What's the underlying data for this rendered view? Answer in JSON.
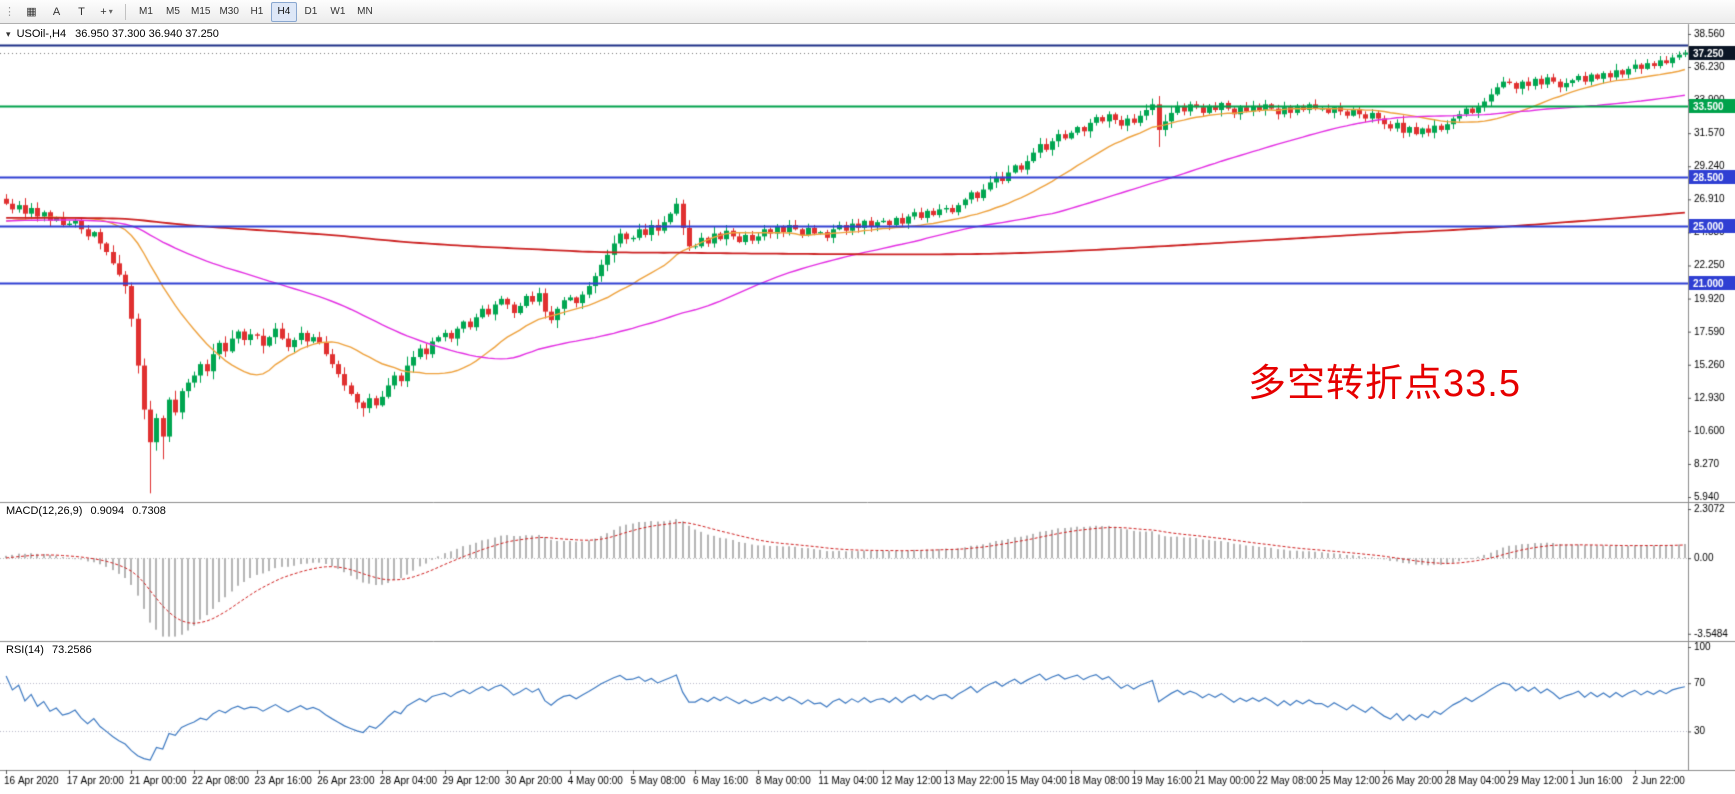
{
  "app": {
    "background": "#ffffff"
  },
  "toolbar": {
    "grip_icon": "⋮",
    "icons": [
      {
        "name": "new-order",
        "glyph": "▦"
      },
      {
        "name": "text-label",
        "glyph": "A"
      },
      {
        "name": "text-tool",
        "glyph": "T"
      },
      {
        "name": "crosshair",
        "glyph": "+"
      },
      {
        "name": "dropdown-arrow",
        "glyph": "▾"
      }
    ],
    "timeframes": [
      "M1",
      "M5",
      "M15",
      "M30",
      "H1",
      "H4",
      "D1",
      "W1",
      "MN"
    ],
    "selected_timeframe": "H4"
  },
  "main_header": {
    "arrow": "▾",
    "symbol": "USOil-,H4",
    "ohlc": "36.950 37.300 36.940 37.250"
  },
  "chart_data": {
    "type": "candlestick",
    "symbol": "USOil-",
    "period": "H4",
    "ohlc_current": {
      "open": 36.95,
      "high": 37.3,
      "low": 36.94,
      "close": 37.25
    },
    "annotation": {
      "text": "多空转折点33.5",
      "color": "#e60000"
    },
    "x_labels": [
      "16 Apr 2020",
      "17 Apr 20:00",
      "21 Apr 00:00",
      "22 Apr 08:00",
      "23 Apr 16:00",
      "26 Apr 23:00",
      "28 Apr 04:00",
      "29 Apr 12:00",
      "30 Apr 20:00",
      "4 May 00:00",
      "5 May 08:00",
      "6 May 16:00",
      "8 May 00:00",
      "11 May 04:00",
      "12 May 12:00",
      "13 May 22:00",
      "15 May 04:00",
      "18 May 08:00",
      "19 May 16:00",
      "21 May 00:00",
      "22 May 08:00",
      "25 May 12:00",
      "26 May 20:00",
      "28 May 04:00",
      "29 May 12:00",
      "1 Jun 16:00",
      "2 Jun 22:00"
    ],
    "candles_per_label": 10,
    "closes": [
      26.6,
      26.2,
      26.5,
      25.9,
      26.3,
      25.7,
      26.0,
      25.4,
      25.6,
      25.1,
      25.2,
      25.4,
      24.8,
      24.3,
      24.6,
      23.8,
      23.2,
      22.4,
      21.6,
      20.8,
      18.5,
      15.2,
      12.1,
      9.8,
      11.5,
      10.2,
      12.8,
      11.9,
      13.4,
      14.0,
      14.5,
      15.3,
      14.8,
      16.0,
      16.8,
      16.2,
      17.1,
      17.6,
      17.0,
      17.4,
      17.3,
      16.6,
      17.2,
      17.8,
      17.1,
      16.5,
      17.0,
      17.5,
      16.9,
      17.2,
      16.8,
      16.0,
      15.3,
      14.6,
      13.8,
      13.2,
      12.6,
      12.2,
      12.9,
      12.4,
      13.0,
      13.8,
      14.5,
      14.1,
      15.2,
      15.8,
      16.4,
      16.0,
      16.9,
      17.2,
      17.5,
      17.1,
      17.8,
      18.3,
      17.9,
      18.6,
      19.2,
      18.8,
      19.5,
      19.9,
      19.5,
      18.9,
      19.4,
      20.1,
      19.7,
      20.3,
      19.0,
      18.4,
      19.2,
      19.8,
      20.0,
      19.6,
      20.2,
      20.8,
      21.5,
      22.3,
      23.0,
      23.8,
      24.5,
      24.1,
      24.2,
      24.8,
      24.4,
      25.1,
      24.7,
      25.3,
      25.9,
      26.6,
      24.9,
      23.6,
      23.6,
      24.2,
      23.8,
      24.5,
      24.1,
      24.7,
      24.3,
      23.9,
      24.4,
      24.0,
      24.3,
      24.8,
      24.5,
      25.0,
      24.6,
      25.1,
      24.8,
      24.4,
      24.9,
      24.5,
      24.6,
      24.2,
      24.8,
      25.1,
      24.7,
      25.2,
      24.9,
      25.4,
      25.0,
      25.3,
      25.4,
      25.1,
      25.6,
      25.2,
      25.7,
      26.0,
      25.6,
      26.1,
      25.8,
      26.2,
      26.3,
      26.0,
      26.5,
      26.9,
      27.4,
      27.0,
      27.6,
      28.1,
      28.5,
      28.2,
      28.8,
      29.3,
      29.0,
      29.6,
      30.2,
      30.8,
      30.4,
      31.0,
      31.5,
      31.2,
      31.6,
      32.0,
      31.7,
      32.3,
      32.7,
      32.4,
      32.9,
      32.5,
      32.1,
      32.6,
      32.3,
      32.8,
      33.2,
      33.6,
      31.8,
      32.4,
      33.0,
      33.5,
      33.1,
      33.6,
      33.4,
      33.0,
      33.5,
      33.2,
      33.7,
      33.3,
      32.9,
      33.4,
      33.1,
      33.5,
      33.2,
      33.6,
      33.3,
      32.9,
      33.4,
      33.0,
      33.5,
      33.2,
      33.6,
      33.3,
      33.3,
      33.0,
      33.4,
      33.1,
      32.8,
      33.2,
      32.9,
      32.6,
      33.0,
      32.6,
      32.2,
      31.9,
      32.3,
      31.6,
      32.0,
      31.5,
      31.9,
      31.6,
      32.1,
      31.8,
      32.2,
      32.6,
      32.9,
      33.3,
      33.0,
      33.4,
      33.8,
      34.3,
      34.8,
      35.2,
      35.1,
      34.7,
      35.2,
      34.9,
      35.4,
      35.0,
      35.5,
      35.2,
      34.8,
      35.1,
      35.3,
      35.6,
      35.2,
      35.7,
      35.4,
      35.8,
      35.5,
      36.0,
      35.7,
      36.1,
      36.4,
      36.1,
      36.5,
      36.3,
      36.7,
      36.5,
      36.9,
      37.1,
      37.25
    ],
    "wick_overrides": {
      "23": {
        "low": 6.2
      },
      "25": {
        "low": 8.6
      },
      "57": {
        "low": 11.6
      },
      "107": {
        "high": 27.0
      },
      "184": {
        "low": 30.6
      }
    },
    "price_axis": {
      "labels": [
        "38.560",
        "36.230",
        "33.900",
        "31.570",
        "29.240",
        "26.910",
        "24.580",
        "22.250",
        "19.920",
        "17.590",
        "15.260",
        "12.930",
        "10.600",
        "8.270",
        "5.940"
      ]
    },
    "horizontal_lines": [
      {
        "price": 37.8,
        "color": "#1c2f86",
        "width": 2,
        "tag": null
      },
      {
        "price": 33.5,
        "color": "#00a24c",
        "width": 2,
        "tag": "33.500"
      },
      {
        "price": 28.5,
        "color": "#2f3fd3",
        "width": 2,
        "tag": "28.500"
      },
      {
        "price": 25.0,
        "color": "#2f3fd3",
        "width": 2,
        "tag": "25.000"
      },
      {
        "price": 21.0,
        "color": "#2f3fd3",
        "width": 2,
        "tag": "21.000"
      }
    ],
    "current_price": {
      "value": 37.25,
      "tag": "37.250",
      "tag_bg": "#0b1626"
    },
    "candle_colors": {
      "up": "#00a651",
      "down": "#e03030"
    },
    "moving_averages": [
      {
        "name": "ma-fast",
        "period": 20,
        "color": "#eea23e"
      },
      {
        "name": "ma-mid",
        "period": 60,
        "color": "#e32ee3"
      },
      {
        "name": "ma-slow",
        "period": 300,
        "color": "#cc2222"
      }
    ],
    "prehistory": {
      "start": 25.9,
      "end": 25.3,
      "length": 300
    },
    "macd": {
      "name": "MACD(12,26,9)",
      "main_value": "0.9094",
      "signal_value": "0.7308",
      "fast": 12,
      "slow": 26,
      "signal": 9,
      "axis": {
        "top": "2.3072",
        "zero": "0.00",
        "bottom": "-3.5484"
      },
      "histogram_color": "#b5b5b5",
      "signal_color": "#d02020"
    },
    "rsi": {
      "name": "RSI(14)",
      "value": "73.2586",
      "period": 14,
      "levels": [
        70,
        30
      ],
      "axis_labels": [
        "100",
        "70",
        "30"
      ],
      "line_color": "#3e7ac2",
      "level_color": "#b9b9c9"
    }
  }
}
